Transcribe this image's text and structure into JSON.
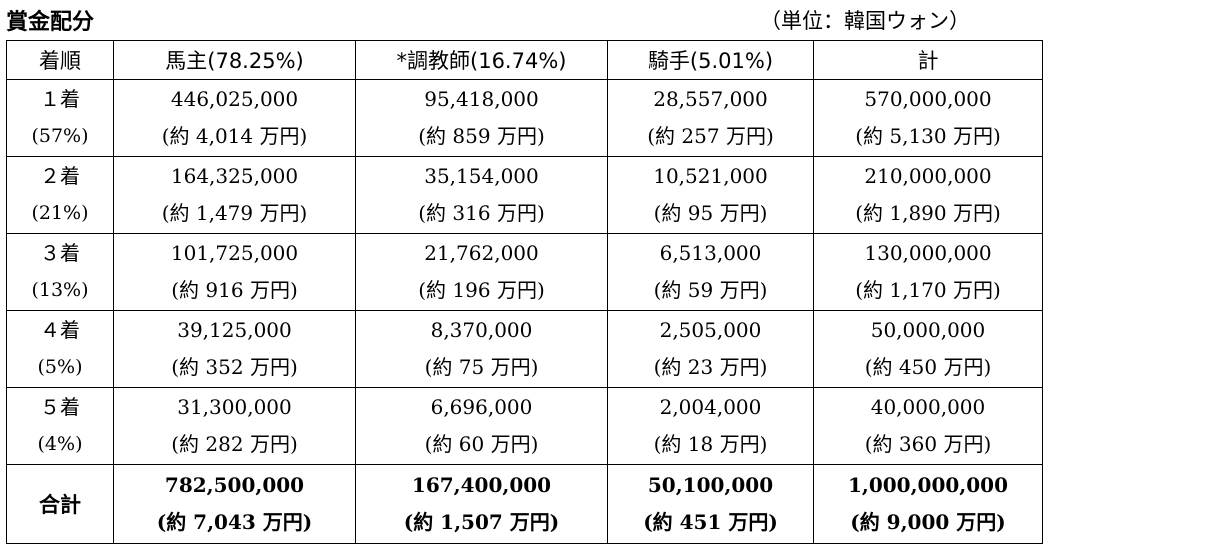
{
  "title": "賞金配分",
  "unit": "（単位：韓国ウォン）",
  "headers": [
    "着順",
    "馬主(78.25%)",
    "*調教師(16.74%)",
    "騎手(5.01%)",
    "計"
  ],
  "rows": [
    {
      "rank": "１着",
      "pct": "(57%)",
      "cells": [
        [
          "446,025,000",
          "(約 4,014 万円)"
        ],
        [
          "95,418,000",
          "(約 859 万円)"
        ],
        [
          "28,557,000",
          "(約 257 万円)"
        ],
        [
          "570,000,000",
          "(約 5,130 万円)"
        ]
      ]
    },
    {
      "rank": "２着",
      "pct": "(21%)",
      "cells": [
        [
          "164,325,000",
          "(約 1,479 万円)"
        ],
        [
          "35,154,000",
          "(約 316 万円)"
        ],
        [
          "10,521,000",
          "(約 95 万円)"
        ],
        [
          "210,000,000",
          "(約 1,890 万円)"
        ]
      ]
    },
    {
      "rank": "３着",
      "pct": "(13%)",
      "cells": [
        [
          "101,725,000",
          "(約 916 万円)"
        ],
        [
          "21,762,000",
          "(約 196 万円)"
        ],
        [
          "6,513,000",
          "(約 59 万円)"
        ],
        [
          "130,000,000",
          "(約 1,170 万円)"
        ]
      ]
    },
    {
      "rank": "４着",
      "pct": "(5%)",
      "cells": [
        [
          "39,125,000",
          "(約 352 万円)"
        ],
        [
          "8,370,000",
          "(約 75 万円)"
        ],
        [
          "2,505,000",
          "(約 23 万円)"
        ],
        [
          "50,000,000",
          "(約 450 万円)"
        ]
      ]
    },
    {
      "rank": "５着",
      "pct": "(4%)",
      "cells": [
        [
          "31,300,000",
          "(約 282 万円)"
        ],
        [
          "6,696,000",
          "(約 60 万円)"
        ],
        [
          "2,004,000",
          "(約 18 万円)"
        ],
        [
          "40,000,000",
          "(約 360 万円)"
        ]
      ]
    }
  ],
  "total": {
    "label": "合計",
    "cells": [
      [
        "782,500,000",
        "(約 7,043 万円)"
      ],
      [
        "167,400,000",
        "(約 1,507 万円)"
      ],
      [
        "50,100,000",
        "(約 451 万円)"
      ],
      [
        "1,000,000,000",
        "(約 9,000 万円)"
      ]
    ]
  }
}
